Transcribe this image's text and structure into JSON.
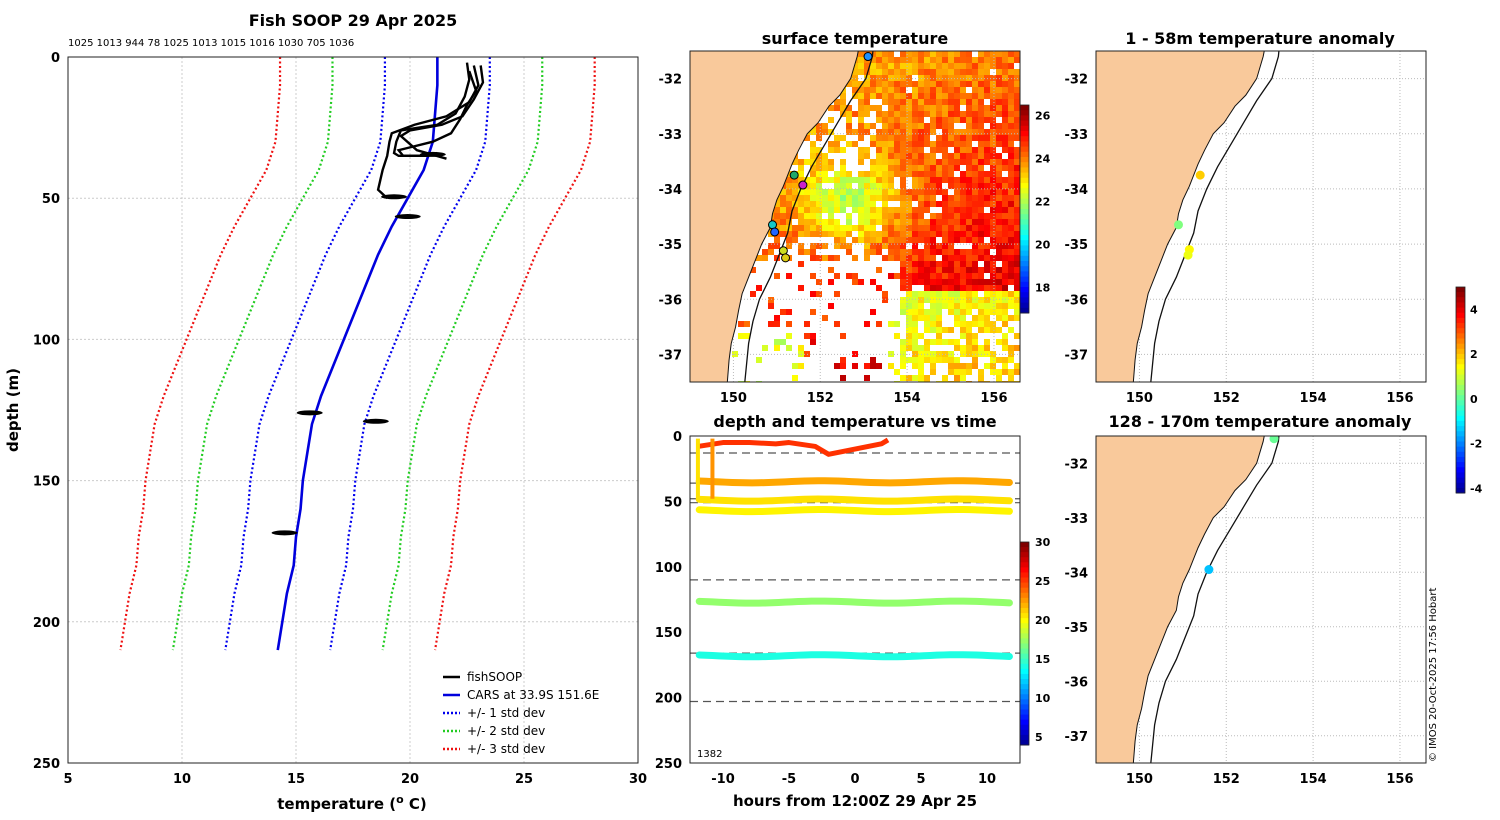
{
  "chart_data": [
    {
      "type": "line",
      "title": "Fish SOOP 29 Apr 2025",
      "subtitle": "1025 1013 944 78 1025 1013 1015 1016 1030 705 1036",
      "xlabel": "temperature (",
      "xlabel_sup": "o",
      "xlabel_suffix": " C)",
      "ylabel": "depth (m)",
      "xlim": [
        5,
        30
      ],
      "ylim": [
        250,
        0
      ],
      "xticks": [
        "5",
        "10",
        "15",
        "20",
        "25",
        "30"
      ],
      "yticks": [
        "0",
        "50",
        "100",
        "150",
        "200",
        "250"
      ],
      "grid": true,
      "legend_position": "bottom-right",
      "legend": [
        {
          "label": "fishSOOP",
          "color": "#000000",
          "style": "solid"
        },
        {
          "label": "CARS at 33.9S 151.6E",
          "color": "#0000dd",
          "style": "solid"
        },
        {
          "label": "+/- 1 std dev",
          "color": "#0000ee",
          "style": "dotted"
        },
        {
          "label": "+/- 2 std dev",
          "color": "#22cc22",
          "style": "dotted"
        },
        {
          "label": "+/- 3 std dev",
          "color": "#ee1111",
          "style": "dotted"
        }
      ],
      "depth": [
        0,
        10,
        20,
        30,
        40,
        50,
        60,
        70,
        80,
        90,
        100,
        110,
        120,
        130,
        140,
        150,
        160,
        170,
        180,
        190,
        200,
        210
      ],
      "cars_mean": [
        21.2,
        21.2,
        21.1,
        21.0,
        20.6,
        19.9,
        19.2,
        18.6,
        18.1,
        17.6,
        17.1,
        16.6,
        16.1,
        15.7,
        15.5,
        15.3,
        15.2,
        15.0,
        14.9,
        14.6,
        14.4,
        14.2
      ],
      "std_offsets": [
        2.3,
        4.6,
        6.9
      ],
      "fishsoop_traces": [
        {
          "t": [
            22.5,
            22.6,
            22.4,
            22.0,
            21.2,
            20.4,
            19.6,
            19.4,
            19.3,
            19.5,
            20.8,
            21.2
          ],
          "d": [
            2,
            8,
            14,
            20,
            24,
            25,
            26,
            30,
            34,
            35,
            35,
            34
          ]
        },
        {
          "t": [
            22.8,
            23.0,
            22.6,
            21.6,
            20.2,
            19.2,
            19.1,
            19.0,
            18.8,
            18.6,
            19.0
          ],
          "d": [
            3,
            10,
            16,
            21,
            24,
            27,
            30,
            35,
            40,
            47,
            50
          ]
        },
        {
          "t": [
            23.1,
            23.2,
            22.8,
            22.3,
            21.4,
            20.0,
            19.6,
            20.3,
            21.6
          ],
          "d": [
            3,
            9,
            15,
            21,
            24,
            26,
            28,
            33,
            36
          ]
        },
        {
          "t": [
            22.6,
            22.9,
            22.5,
            22.2,
            21.8,
            21.0,
            20.0,
            19.5,
            19.7,
            20.6
          ],
          "d": [
            5,
            12,
            17,
            22,
            27,
            30,
            32,
            33,
            35,
            35
          ]
        }
      ],
      "fishsoop_blobs": [
        {
          "t": 19.3,
          "d": 49.5
        },
        {
          "t": 19.9,
          "d": 56.5
        },
        {
          "t": 15.6,
          "d": 126
        },
        {
          "t": 18.5,
          "d": 129
        },
        {
          "t": 14.5,
          "d": 168.5
        },
        {
          "t": 21.0,
          "d": 34.5
        }
      ]
    },
    {
      "type": "heatmap",
      "title": "surface temperature",
      "xticks": [
        "150",
        "152",
        "154",
        "156"
      ],
      "yticks": [
        "-32",
        "-33",
        "-34",
        "-35",
        "-36",
        "-37"
      ],
      "xlim": [
        149.0,
        156.6
      ],
      "ylim": [
        -37.5,
        -31.5
      ],
      "colorbar_ticks": [
        "18",
        "20",
        "22",
        "24",
        "26"
      ],
      "colorbar_range": [
        16.8,
        26.5
      ],
      "stations": [
        {
          "lon": 153.1,
          "lat": -31.6,
          "color": "#1e90ff"
        },
        {
          "lon": 151.4,
          "lat": -33.75,
          "color": "#1fa86a"
        },
        {
          "lon": 151.6,
          "lat": -33.93,
          "color": "#cc22cc"
        },
        {
          "lon": 150.9,
          "lat": -34.65,
          "color": "#16c7c7"
        },
        {
          "lon": 150.95,
          "lat": -34.78,
          "color": "#2266ff"
        },
        {
          "lon": 151.15,
          "lat": -35.12,
          "color": "#ccdd22"
        },
        {
          "lon": 151.2,
          "lat": -35.25,
          "color": "#ddcc11"
        }
      ]
    },
    {
      "type": "scatter",
      "title": "depth and temperature vs time",
      "xlabel": "hours from 12:00Z 29 Apr 25",
      "xlim": [
        -12.5,
        12.5
      ],
      "ylim": [
        250,
        0
      ],
      "xticks": [
        "-10",
        "-5",
        "0",
        "5",
        "10"
      ],
      "yticks": [
        "0",
        "50",
        "100",
        "150",
        "200",
        "250"
      ],
      "annotation": "1382",
      "colorbar_ticks": [
        "5",
        "10",
        "15",
        "20",
        "25",
        "30"
      ],
      "colorbar_range": [
        4,
        30
      ],
      "dashed_depths": [
        13,
        36,
        48,
        51,
        110,
        166,
        203
      ],
      "bands": [
        {
          "depth": 35,
          "temp": 22.5
        },
        {
          "depth": 49,
          "temp": 21.0
        },
        {
          "depth": 57,
          "temp": 20.5
        },
        {
          "depth": 127,
          "temp": 17.5
        },
        {
          "depth": 168,
          "temp": 14.5
        }
      ],
      "surface_trace": {
        "x": [
          -11.9,
          -10.0,
          -8.0,
          -6.0,
          -5.0,
          -3.0,
          -2.0,
          0.0,
          1.0,
          2.0,
          2.5
        ],
        "d": [
          8,
          5,
          5,
          6,
          5,
          8,
          14,
          10,
          8,
          6,
          3
        ],
        "temp": 25.5
      }
    },
    {
      "type": "scatter",
      "title": "1 - 58m temperature anomaly",
      "xticks": [
        "150",
        "152",
        "154",
        "156"
      ],
      "yticks": [
        "-32",
        "-33",
        "-34",
        "-35",
        "-36",
        "-37"
      ],
      "xlim": [
        149.0,
        156.6
      ],
      "ylim": [
        -37.5,
        -31.5
      ],
      "points": [
        {
          "lon": 151.4,
          "lat": -33.75,
          "anom": 2.0
        },
        {
          "lon": 150.9,
          "lat": -34.65,
          "anom": 0.4
        },
        {
          "lon": 151.15,
          "lat": -35.1,
          "anom": 1.6
        },
        {
          "lon": 151.12,
          "lat": -35.2,
          "anom": 1.4
        }
      ]
    },
    {
      "type": "scatter",
      "title": "128 - 170m temperature anomaly",
      "xticks": [
        "150",
        "152",
        "154",
        "156"
      ],
      "yticks": [
        "-32",
        "-33",
        "-34",
        "-35",
        "-36",
        "-37"
      ],
      "xlim": [
        149.0,
        156.6
      ],
      "ylim": [
        -37.5,
        -31.5
      ],
      "points": [
        {
          "lon": 153.1,
          "lat": -31.55,
          "anom": 0.2
        },
        {
          "lon": 151.6,
          "lat": -33.95,
          "anom": -1.3
        }
      ],
      "colorbar_ticks": [
        "4",
        "2",
        "0",
        "-2",
        "-4"
      ],
      "colorbar_range": [
        -4.2,
        5.0
      ]
    }
  ],
  "credit": "© IMOS 20-Oct-2025 17:56 Hobart"
}
